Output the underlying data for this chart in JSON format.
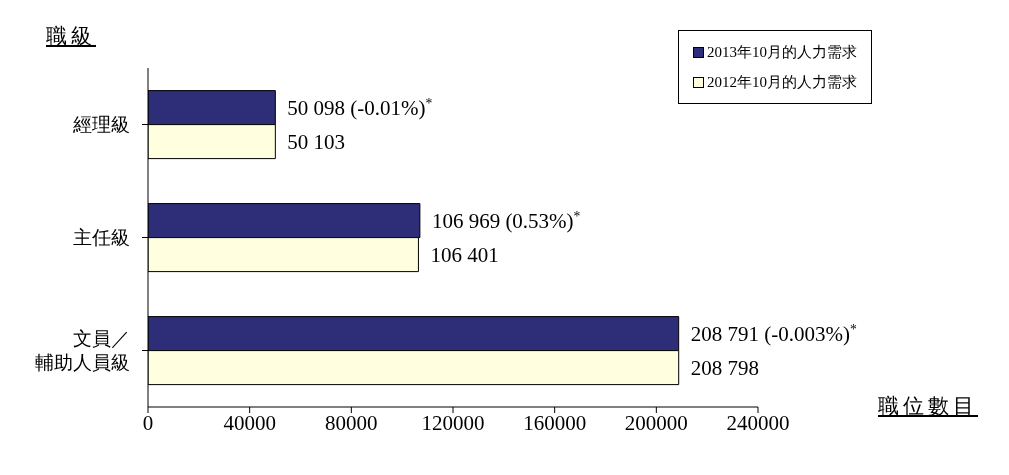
{
  "chart_data": {
    "type": "bar",
    "orientation": "horizontal",
    "ylabel": "職級",
    "xlabel": "職位數目",
    "categories": [
      "經理級",
      "主任級",
      "文員／輔助人員級"
    ],
    "series": [
      {
        "name": "2013年10月的人力需求",
        "color": "#2e2e78",
        "values": [
          50098,
          106969,
          208791
        ],
        "value_labels": [
          "50 098 (-0.01%)$^{*}$",
          "106 969 (0.53%)$^{*}$",
          "208 791 (-0.003%)$^{*}$"
        ]
      },
      {
        "name": "2012年10月的人力需求",
        "color": "#ffffe0",
        "values": [
          50103,
          106401,
          208798
        ],
        "value_labels": [
          "50 103",
          "106 401",
          "208 798"
        ]
      }
    ],
    "xlim": [
      0,
      240000
    ],
    "xticks": [
      0,
      40000,
      80000,
      120000,
      160000,
      200000,
      240000
    ],
    "grid": false,
    "legend": "top right"
  }
}
